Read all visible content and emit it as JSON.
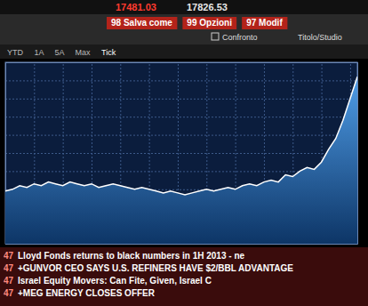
{
  "chart_data": {
    "type": "area",
    "color": "#ffffff",
    "grid": true,
    "tick_labels": false,
    "x": [
      0,
      1,
      2,
      3,
      4,
      5,
      6,
      7,
      8,
      9,
      10,
      11,
      12,
      13,
      14,
      15,
      16,
      17,
      18,
      19,
      20,
      21,
      22,
      23,
      24,
      25,
      26,
      27,
      28,
      29,
      30,
      31,
      32,
      33,
      34,
      35,
      36,
      37,
      38,
      39,
      40,
      41,
      42,
      43,
      44,
      45,
      46,
      47,
      48,
      49
    ],
    "values": [
      29,
      30,
      32,
      31,
      33,
      32,
      34,
      33,
      32,
      34,
      33,
      32,
      33,
      31,
      32,
      33,
      32,
      31,
      30,
      31,
      30,
      29,
      28,
      29,
      28,
      27,
      28,
      29,
      30,
      29,
      30,
      31,
      30,
      32,
      33,
      32,
      34,
      35,
      34,
      38,
      37,
      40,
      42,
      41,
      45,
      52,
      58,
      68,
      80,
      92
    ],
    "xlim": [
      0,
      49
    ],
    "xticks": [
      4,
      8,
      12,
      16,
      20,
      24,
      28,
      32,
      36,
      40,
      44,
      48
    ],
    "ylim": [
      0,
      100
    ],
    "yticks": [
      10,
      20,
      30,
      40,
      50,
      60,
      70,
      80,
      90
    ]
  },
  "header": {
    "values": [
      "17481.03",
      "17826.53"
    ],
    "buttons": [
      "98 Salva come",
      "99 Opzioni",
      "97 Modif"
    ],
    "compare": "Confronto",
    "study": "Titolo/Studio",
    "tabs": [
      "YTD",
      "1A",
      "5A",
      "Max",
      "Tick"
    ]
  },
  "news": [
    {
      "time": "47",
      "text": "Lloyd Fonds returns to black numbers in 1H 2013 - ne"
    },
    {
      "time": "47",
      "text": "+GUNVOR CEO SAYS U.S. REFINERS HAVE $2/BBL ADVANTAGE"
    },
    {
      "time": "47",
      "text": "Israel Equity Movers: Can Fite, Given, Israel C"
    },
    {
      "time": "47",
      "text": "+MEG ENERGY CLOSES OFFER"
    }
  ]
}
